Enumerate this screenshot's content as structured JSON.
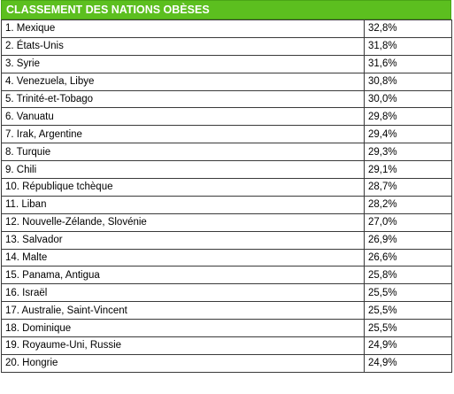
{
  "chart_data": {
    "type": "table",
    "title": "CLASSEMENT DES NATIONS OBÈSES",
    "columns": [
      "",
      ""
    ],
    "rows": [
      {
        "label": "1. Mexique",
        "value": "32,8%"
      },
      {
        "label": "2. États-Unis",
        "value": "31,8%"
      },
      {
        "label": "3. Syrie",
        "value": "31,6%"
      },
      {
        "label": "4. Venezuela, Libye",
        "value": "30,8%"
      },
      {
        "label": "5. Trinité-et-Tobago",
        "value": "30,0%"
      },
      {
        "label": "6. Vanuatu",
        "value": "29,8%"
      },
      {
        "label": "7. Irak, Argentine",
        "value": "29,4%"
      },
      {
        "label": "8. Turquie",
        "value": "29,3%"
      },
      {
        "label": "9. Chili",
        "value": "29,1%"
      },
      {
        "label": "10. République tchèque",
        "value": "28,7%"
      },
      {
        "label": "11. Liban",
        "value": "28,2%"
      },
      {
        "label": "12. Nouvelle-Zélande, Slovénie",
        "value": "27,0%"
      },
      {
        "label": "13. Salvador",
        "value": "26,9%"
      },
      {
        "label": "14. Malte",
        "value": "26,6%"
      },
      {
        "label": "15. Panama, Antigua",
        "value": "25,8%"
      },
      {
        "label": "16. Israël",
        "value": "25,5%"
      },
      {
        "label": "17. Australie, Saint-Vincent",
        "value": "25,5%"
      },
      {
        "label": "18. Dominique",
        "value": "25,5%"
      },
      {
        "label": "19. Royaume-Uni, Russie",
        "value": "24,9%"
      },
      {
        "label": "20. Hongrie",
        "value": "24,9%"
      }
    ],
    "colors": {
      "header_bg": "#5cbf1f",
      "header_text": "#ffffff",
      "border": "#3a3a3a"
    }
  }
}
